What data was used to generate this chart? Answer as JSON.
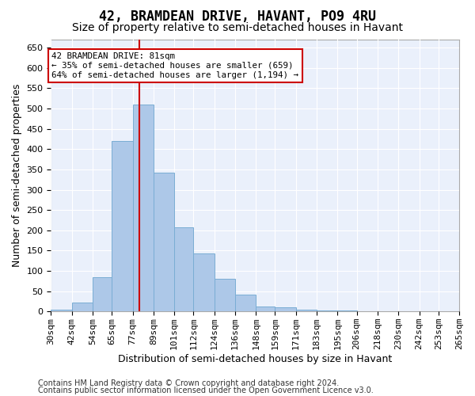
{
  "title": "42, BRAMDEAN DRIVE, HAVANT, PO9 4RU",
  "subtitle": "Size of property relative to semi-detached houses in Havant",
  "xlabel": "Distribution of semi-detached houses by size in Havant",
  "ylabel": "Number of semi-detached properties",
  "footnote1": "Contains HM Land Registry data © Crown copyright and database right 2024.",
  "footnote2": "Contains public sector information licensed under the Open Government Licence v3.0.",
  "annotation_line1": "42 BRAMDEAN DRIVE: 81sqm",
  "annotation_line2": "← 35% of semi-detached houses are smaller (659)",
  "annotation_line3": "64% of semi-detached houses are larger (1,194) →",
  "bar_color": "#adc8e8",
  "bar_edge_color": "#7aadd4",
  "property_line_x": 81,
  "property_line_color": "#cc0000",
  "bin_edges": [
    30,
    42,
    54,
    65,
    77,
    89,
    101,
    112,
    124,
    136,
    148,
    159,
    171,
    183,
    195,
    206,
    218,
    230,
    242,
    253,
    265
  ],
  "bin_counts": [
    5,
    22,
    85,
    420,
    510,
    343,
    207,
    143,
    80,
    42,
    12,
    10,
    5,
    3,
    2,
    1,
    1,
    1,
    1,
    1
  ],
  "ylim": [
    0,
    670
  ],
  "yticks": [
    0,
    50,
    100,
    150,
    200,
    250,
    300,
    350,
    400,
    450,
    500,
    550,
    600,
    650
  ],
  "fig_background": "#ffffff",
  "plot_background": "#eaf0fb",
  "grid_color": "#ffffff",
  "title_fontsize": 12,
  "subtitle_fontsize": 10,
  "axis_label_fontsize": 9,
  "tick_fontsize": 8,
  "footnote_fontsize": 7
}
